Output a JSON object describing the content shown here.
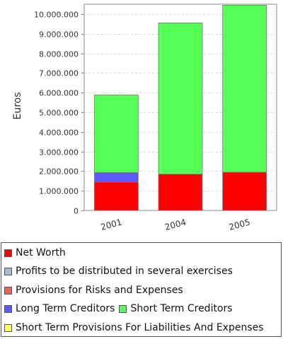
{
  "chart_data": {
    "type": "bar",
    "stacked": true,
    "categories": [
      "2001",
      "2004",
      "2005"
    ],
    "ylabel": "Euros",
    "xlabel": "",
    "ylim": [
      0,
      10500000
    ],
    "yticks": [
      "0",
      "1.000.000",
      "2.000.000",
      "3.000.000",
      "4.000.000",
      "5.000.000",
      "6.000.000",
      "7.000.000",
      "8.000.000",
      "9.000.000",
      "10.000.000"
    ],
    "grid": true,
    "legend_position": "bottom",
    "series": [
      {
        "name": "Net Worth",
        "color": "#ff0000",
        "values": [
          1450000,
          1850000,
          1950000
        ]
      },
      {
        "name": "Profits to be distributed in several exercises",
        "color": "#a3bcd6",
        "values": [
          0,
          0,
          0
        ]
      },
      {
        "name": "Provisions for Risks and Expenses",
        "color": "#f25c5c",
        "values": [
          0,
          0,
          0
        ]
      },
      {
        "name": "Long Term Creditors",
        "color": "#5a5aff",
        "values": [
          480000,
          0,
          0
        ]
      },
      {
        "name": "Short Term Creditors",
        "color": "#55ff55",
        "values": [
          3950000,
          7700000,
          8500000
        ]
      },
      {
        "name": "Short Term Provisions For Liabilities And Expenses",
        "color": "#ffff55",
        "values": [
          0,
          0,
          0
        ]
      }
    ]
  }
}
